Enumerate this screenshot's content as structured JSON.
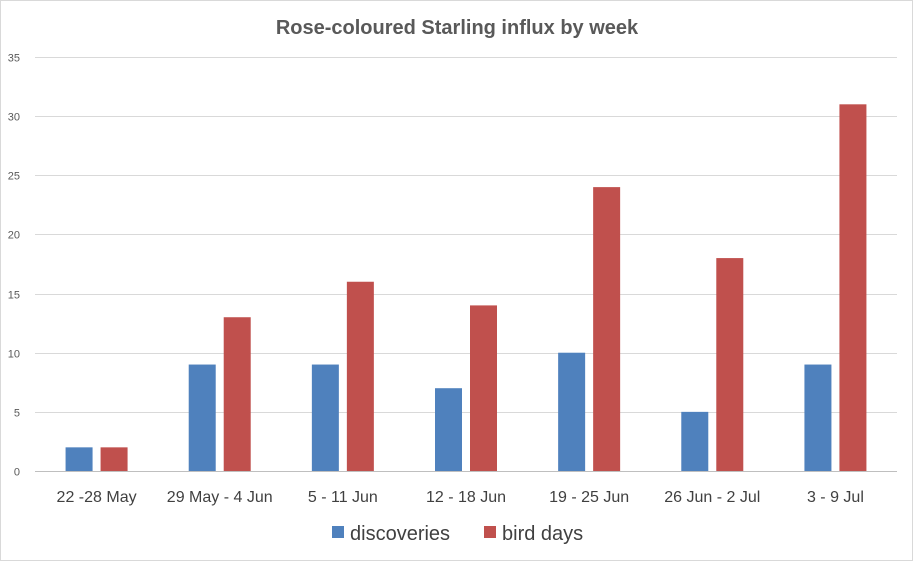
{
  "chart_data": {
    "type": "bar",
    "title": "Rose-coloured Starling influx by week",
    "xlabel": "",
    "ylabel": "",
    "ylim": [
      0,
      35
    ],
    "yticks": [
      0,
      5,
      10,
      15,
      20,
      25,
      30,
      35
    ],
    "grid": true,
    "legend_position": "bottom",
    "categories": [
      "22 -28 May",
      "29 May - 4 Jun",
      "5 - 11 Jun",
      "12 - 18 Jun",
      "19 - 25 Jun",
      "26 Jun - 2 Jul",
      "3 - 9 Jul"
    ],
    "series": [
      {
        "name": "discoveries",
        "color": "#4f81bd",
        "values": [
          2,
          9,
          9,
          7,
          10,
          5,
          9
        ]
      },
      {
        "name": "bird days",
        "color": "#c0504d",
        "values": [
          2,
          13,
          16,
          14,
          24,
          18,
          31
        ]
      }
    ]
  }
}
